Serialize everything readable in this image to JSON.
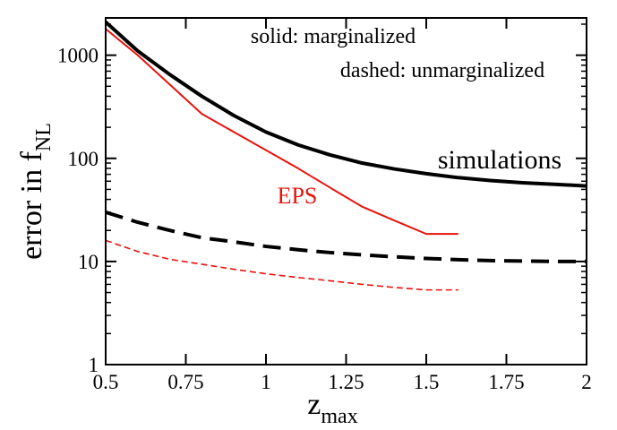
{
  "chart_data": {
    "type": "line",
    "xlabel": "z",
    "xlabel_sub": "max",
    "ylabel": "error in f",
    "ylabel_sub": "NL",
    "xlim": [
      0.5,
      2
    ],
    "xticks": [
      0.5,
      0.75,
      1,
      1.25,
      1.5,
      1.75,
      2
    ],
    "ylim": [
      1,
      2300
    ],
    "yticks": [
      1,
      10,
      100,
      1000
    ],
    "ylog": true,
    "annotations": [
      {
        "text": "solid: marginalized",
        "color": "#000000"
      },
      {
        "text": "dashed: unmarginalized",
        "color": "#000000"
      },
      {
        "text": "simulations",
        "color": "#000000"
      },
      {
        "text": "EPS",
        "color": "#e8120c"
      }
    ],
    "series": [
      {
        "color": "#000000",
        "dashed": false,
        "width": 4,
        "x": [
          0.5,
          0.6,
          0.7,
          0.8,
          0.9,
          1.0,
          1.1,
          1.2,
          1.3,
          1.4,
          1.5,
          1.6,
          1.7,
          1.8,
          1.9,
          2.0
        ],
        "values": [
          2100,
          1100,
          650,
          400,
          260,
          180,
          135,
          108,
          90,
          79,
          71,
          65,
          61,
          58,
          56,
          54
        ]
      },
      {
        "color": "#e8120c",
        "dashed": false,
        "width": 2,
        "x": [
          0.5,
          0.6,
          0.7,
          0.8,
          0.9,
          1.0,
          1.1,
          1.2,
          1.3,
          1.4,
          1.5,
          1.6
        ],
        "values": [
          1800,
          1000,
          520,
          270,
          180,
          120,
          80,
          52,
          34,
          25,
          18.5,
          18.5
        ]
      },
      {
        "color": "#000000",
        "dashed": true,
        "width": 4,
        "x": [
          0.5,
          0.6,
          0.7,
          0.8,
          0.9,
          1.0,
          1.1,
          1.2,
          1.3,
          1.4,
          1.5,
          1.6,
          1.7,
          1.8,
          1.9,
          2.0
        ],
        "values": [
          30,
          24,
          20,
          17,
          15.5,
          14,
          13,
          12.2,
          11.6,
          11.1,
          10.7,
          10.4,
          10.2,
          10.1,
          10,
          10
        ]
      },
      {
        "color": "#e8120c",
        "dashed": true,
        "width": 1.6,
        "x": [
          0.5,
          0.6,
          0.7,
          0.8,
          0.9,
          1.0,
          1.1,
          1.2,
          1.3,
          1.4,
          1.5,
          1.6
        ],
        "values": [
          16,
          12.5,
          10.5,
          9.4,
          8.4,
          7.6,
          7,
          6.5,
          6,
          5.6,
          5.3,
          5.3
        ]
      }
    ]
  }
}
